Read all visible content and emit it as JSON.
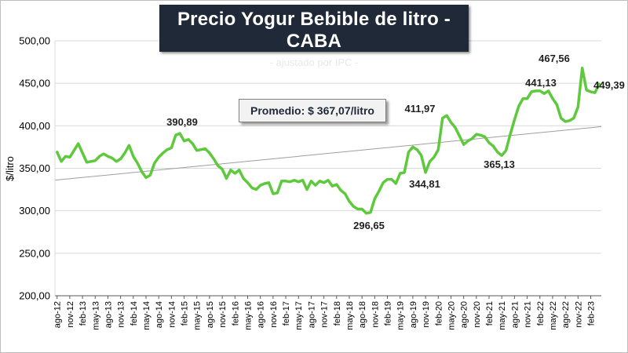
{
  "title": "Precio Yogur Bebible de litro - CABA",
  "subtitle": "- ajustado por IPC -",
  "average_label": "Promedio: $ 367,07/litro",
  "colors": {
    "line": "#5ec93c",
    "trend": "#9e9e9e",
    "title_bg": "#1f2937",
    "grid": "#d9d9d9"
  },
  "chart_data": {
    "type": "line",
    "title": "Precio Yogur Bebible de litro - CABA",
    "subtitle": "- ajustado por IPC -",
    "ylabel": "$/litro",
    "xlabel": "",
    "ylim": [
      200,
      500
    ],
    "yticks": [
      "200,00",
      "250,00",
      "300,00",
      "350,00",
      "400,00",
      "450,00",
      "500,00"
    ],
    "grid": true,
    "x_tick_labels": [
      "ago-12",
      "nov-12",
      "feb-13",
      "may-13",
      "ago-13",
      "nov-13",
      "feb-14",
      "may-14",
      "ago-14",
      "nov-14",
      "feb-15",
      "may-15",
      "ago-15",
      "nov-15",
      "feb-16",
      "may-16",
      "ago-16",
      "nov-16",
      "feb-17",
      "may-17",
      "ago-17",
      "nov-17",
      "feb-18",
      "may-18",
      "ago-18",
      "nov-18",
      "feb-19",
      "may-19",
      "ago-19",
      "nov-19",
      "feb-20",
      "may-20",
      "ago-20",
      "nov-20",
      "feb-21",
      "may-21",
      "ago-21",
      "nov-21",
      "feb-22",
      "may-22",
      "ago-22",
      "nov-22",
      "feb-23"
    ],
    "series": [
      {
        "name": "",
        "values": [
          369,
          358,
          364,
          363,
          371,
          379,
          368,
          357,
          358,
          359,
          364,
          367,
          364,
          362,
          358,
          361,
          368,
          377,
          364,
          356,
          346,
          339,
          342,
          356,
          363,
          368,
          372,
          374,
          389,
          391,
          382,
          384,
          379,
          371,
          372,
          373,
          368,
          361,
          353,
          349,
          338,
          348,
          344,
          348,
          338,
          333,
          327,
          325,
          330,
          332,
          333,
          320,
          321,
          335,
          335,
          334,
          336,
          334,
          336,
          325,
          335,
          330,
          335,
          333,
          336,
          329,
          331,
          324,
          320,
          311,
          305,
          302,
          302,
          297,
          298,
          314,
          323,
          333,
          337,
          337,
          332,
          344,
          345,
          369,
          375,
          372,
          365,
          345,
          358,
          363,
          372,
          409,
          412,
          404,
          398,
          388,
          378,
          382,
          385,
          390,
          389,
          387,
          380,
          376,
          369,
          365,
          371,
          390,
          407,
          423,
          432,
          432,
          440,
          441,
          441,
          438,
          441,
          432,
          425,
          409,
          405,
          406,
          409,
          422,
          468,
          442,
          440,
          439,
          449
        ]
      }
    ],
    "annotations": [
      "390,89",
      "296,65",
      "344,81",
      "411,97",
      "365,13",
      "441,13",
      "467,56",
      "449,39"
    ],
    "average": 367.07,
    "trend": {
      "start": 336,
      "end": 399
    }
  }
}
